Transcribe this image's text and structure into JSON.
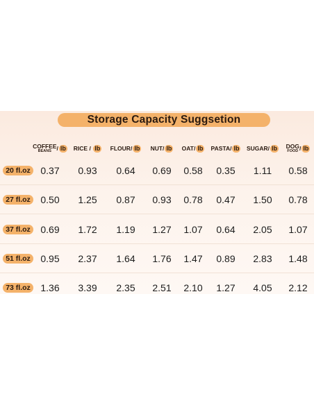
{
  "title": "Storage Capacity Suggsetion",
  "columns": [
    {
      "main": "COFFEE",
      "sub": "BEANS",
      "sep": "/",
      "unit": "lb"
    },
    {
      "main": "RICE",
      "sub": "",
      "sep": " / ",
      "unit": "lb"
    },
    {
      "main": "FLOUR",
      "sub": "",
      "sep": "/",
      "unit": "lb"
    },
    {
      "main": "NUT",
      "sub": "",
      "sep": "/",
      "unit": "lb"
    },
    {
      "main": "OAT",
      "sub": "",
      "sep": "/",
      "unit": "lb"
    },
    {
      "main": "PASTA",
      "sub": "",
      "sep": "/",
      "unit": "lb"
    },
    {
      "main": "SUGAR",
      "sub": "",
      "sep": "/",
      "unit": "lb"
    },
    {
      "main": "DOG",
      "sub": "FOOD",
      "sep": "/",
      "unit": "lb"
    }
  ],
  "rows": [
    {
      "size": "20 fl.oz",
      "values": [
        "0.37",
        "0.93",
        "0.64",
        "0.69",
        "0.58",
        "0.35",
        "1.11",
        "0.58"
      ]
    },
    {
      "size": "27 fl.oz",
      "values": [
        "0.50",
        "1.25",
        "0.87",
        "0.93",
        "0.78",
        "0.47",
        "1.50",
        "0.78"
      ]
    },
    {
      "size": "37 fl.oz",
      "values": [
        "0.69",
        "1.72",
        "1.19",
        "1.27",
        "1.07",
        "0.64",
        "2.05",
        "1.07"
      ]
    },
    {
      "size": "51 fl.oz",
      "values": [
        "0.95",
        "2.37",
        "1.64",
        "1.76",
        "1.47",
        "0.89",
        "2.83",
        "1.48"
      ]
    },
    {
      "size": "73 fl.oz",
      "values": [
        "1.36",
        "3.39",
        "2.35",
        "2.51",
        "2.10",
        "1.27",
        "4.05",
        "2.12"
      ]
    }
  ],
  "colors": {
    "accent": "#f4b26a",
    "panel": "#fbeadf",
    "text": "#2a1a10"
  }
}
